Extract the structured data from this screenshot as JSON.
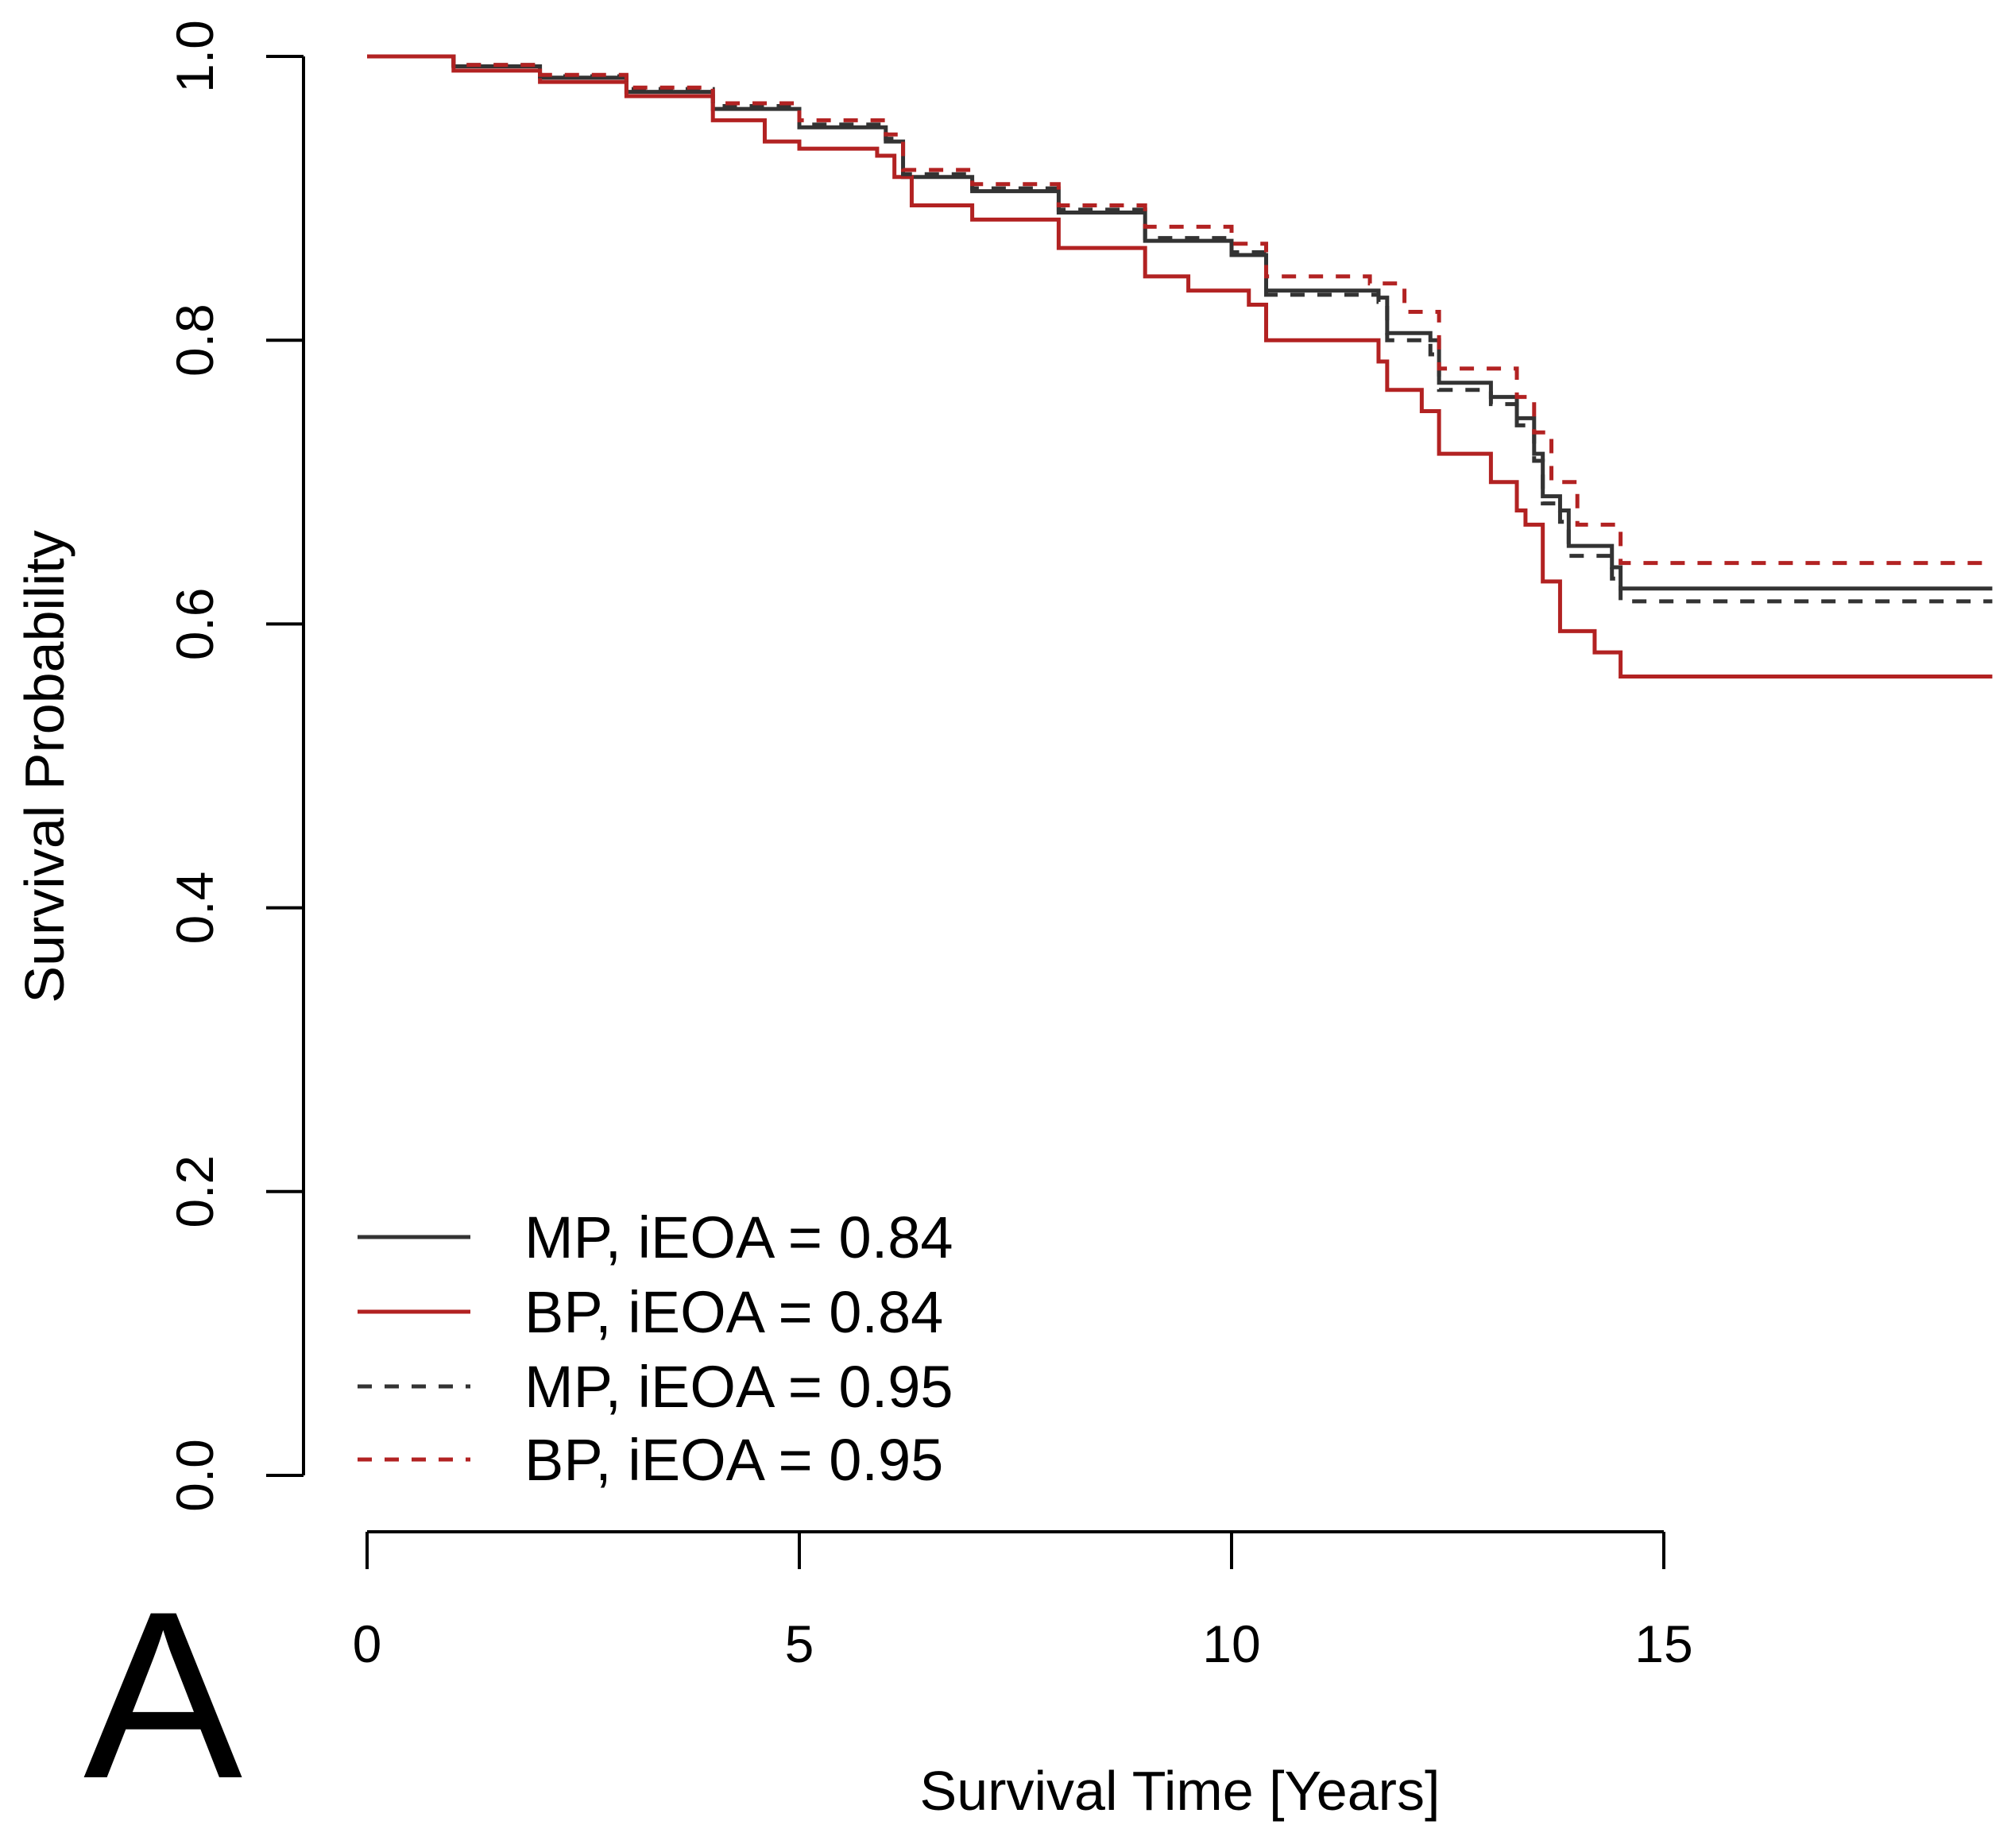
{
  "chart_data": {
    "type": "line",
    "step": true,
    "panel_label": "A",
    "xlabel": "Survival Time [Years]",
    "ylabel": "Survival Probability",
    "xlim": [
      0,
      18.8
    ],
    "ylim": [
      0,
      1
    ],
    "xticks": [
      "0",
      "5",
      "10",
      "15"
    ],
    "yticks": [
      "0.0",
      "0.2",
      "0.4",
      "0.6",
      "0.8",
      "1.0"
    ],
    "grid": false,
    "legend_position": "bottom-left",
    "series": [
      {
        "name": "MP, iEOA = 0.84",
        "color": "#333333",
        "dash": "solid",
        "x": [
          0,
          1,
          2,
          3,
          4,
          5,
          6,
          6.2,
          7,
          8,
          9,
          10,
          10.4,
          11.7,
          11.8,
          12.3,
          12.4,
          13,
          13.3,
          13.5,
          13.6,
          13.8,
          13.9,
          14.4,
          14.5,
          18.8
        ],
        "y": [
          1,
          0.993,
          0.985,
          0.975,
          0.963,
          0.95,
          0.94,
          0.915,
          0.905,
          0.89,
          0.87,
          0.86,
          0.835,
          0.83,
          0.805,
          0.8,
          0.77,
          0.76,
          0.745,
          0.72,
          0.69,
          0.68,
          0.655,
          0.64,
          0.625,
          0.625
        ]
      },
      {
        "name": "BP, iEOA = 0.84",
        "color": "#b22222",
        "dash": "solid",
        "x": [
          0,
          1,
          2,
          3,
          4,
          4.6,
          5,
          5.9,
          6.1,
          6.3,
          7,
          8,
          9,
          9.5,
          10.2,
          10.4,
          11.5,
          11.7,
          11.8,
          12.2,
          12.4,
          13,
          13.3,
          13.4,
          13.6,
          13.8,
          14.2,
          14.5,
          18.8
        ],
        "y": [
          1,
          0.99,
          0.982,
          0.972,
          0.955,
          0.94,
          0.935,
          0.93,
          0.915,
          0.895,
          0.885,
          0.865,
          0.845,
          0.835,
          0.825,
          0.8,
          0.8,
          0.785,
          0.765,
          0.75,
          0.72,
          0.7,
          0.68,
          0.67,
          0.63,
          0.595,
          0.58,
          0.563,
          0.563
        ]
      },
      {
        "name": "MP, iEOA = 0.95",
        "color": "#333333",
        "dash": "dashed",
        "x": [
          0,
          1,
          2,
          3,
          4,
          5,
          6,
          6.2,
          7,
          8,
          9,
          10,
          10.4,
          11.7,
          11.8,
          12.3,
          12.4,
          13,
          13.3,
          13.5,
          13.6,
          13.8,
          13.9,
          14.4,
          14.5,
          18.8
        ],
        "y": [
          1,
          0.994,
          0.986,
          0.977,
          0.965,
          0.952,
          0.942,
          0.917,
          0.907,
          0.892,
          0.872,
          0.862,
          0.832,
          0.827,
          0.8,
          0.79,
          0.765,
          0.755,
          0.74,
          0.715,
          0.685,
          0.672,
          0.648,
          0.632,
          0.616,
          0.616
        ]
      },
      {
        "name": "BP, iEOA = 0.95",
        "color": "#b22222",
        "dash": "dashed",
        "x": [
          0,
          1,
          2,
          3,
          4,
          5,
          6,
          6.2,
          7,
          8,
          9,
          10,
          10.4,
          11.6,
          12,
          12.4,
          13.3,
          13.5,
          13.7,
          14,
          14.5,
          18.8
        ],
        "y": [
          1,
          0.994,
          0.987,
          0.978,
          0.967,
          0.955,
          0.945,
          0.92,
          0.91,
          0.895,
          0.88,
          0.868,
          0.845,
          0.84,
          0.82,
          0.78,
          0.76,
          0.735,
          0.7,
          0.67,
          0.643,
          0.643
        ]
      }
    ]
  }
}
